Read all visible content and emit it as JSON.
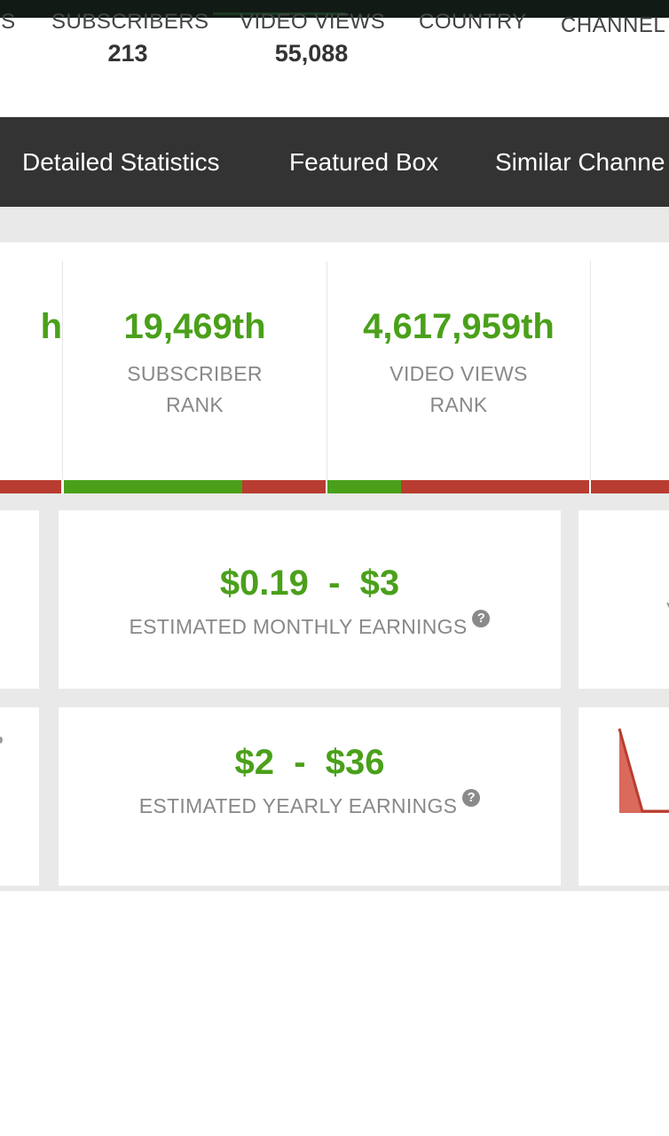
{
  "summary_stats": [
    {
      "label": "OS",
      "value": ""
    },
    {
      "label": "SUBSCRIBERS",
      "value": "213"
    },
    {
      "label": "VIDEO VIEWS",
      "value": "55,088"
    },
    {
      "label": "COUNTRY",
      "value": ""
    },
    {
      "label": "CHANNEL",
      "value": ""
    }
  ],
  "nav": {
    "items": [
      "Detailed Statistics",
      "Featured Box",
      "Similar Channe"
    ]
  },
  "ranks": [
    {
      "value": "h",
      "label": "",
      "progress_green_fraction": 0.0
    },
    {
      "value": "19,469th",
      "label_line1": "SUBSCRIBER",
      "label_line2": "RANK",
      "progress_green_fraction": 0.68
    },
    {
      "value": "4,617,959th",
      "label_line1": "VIDEO VIEWS",
      "label_line2": "RANK",
      "progress_green_fraction": 0.28
    },
    {
      "value": "",
      "label": "",
      "progress_green_fraction": 0.0
    }
  ],
  "earnings": {
    "monthly": {
      "range": "$0.19  -  $3",
      "label": "ESTIMATED MONTHLY EARNINGS"
    },
    "yearly": {
      "range": "$2  -  $36",
      "label": "ESTIMATED YEARLY EARNINGS"
    },
    "help_glyph": "?"
  },
  "colors": {
    "accent_green": "#4aa01a",
    "bar_red": "#b93c30",
    "nav_bg": "#333333",
    "sparkline_fill": "#d96a5c"
  },
  "icons": [
    "help-icon",
    "sparkline-chart"
  ]
}
